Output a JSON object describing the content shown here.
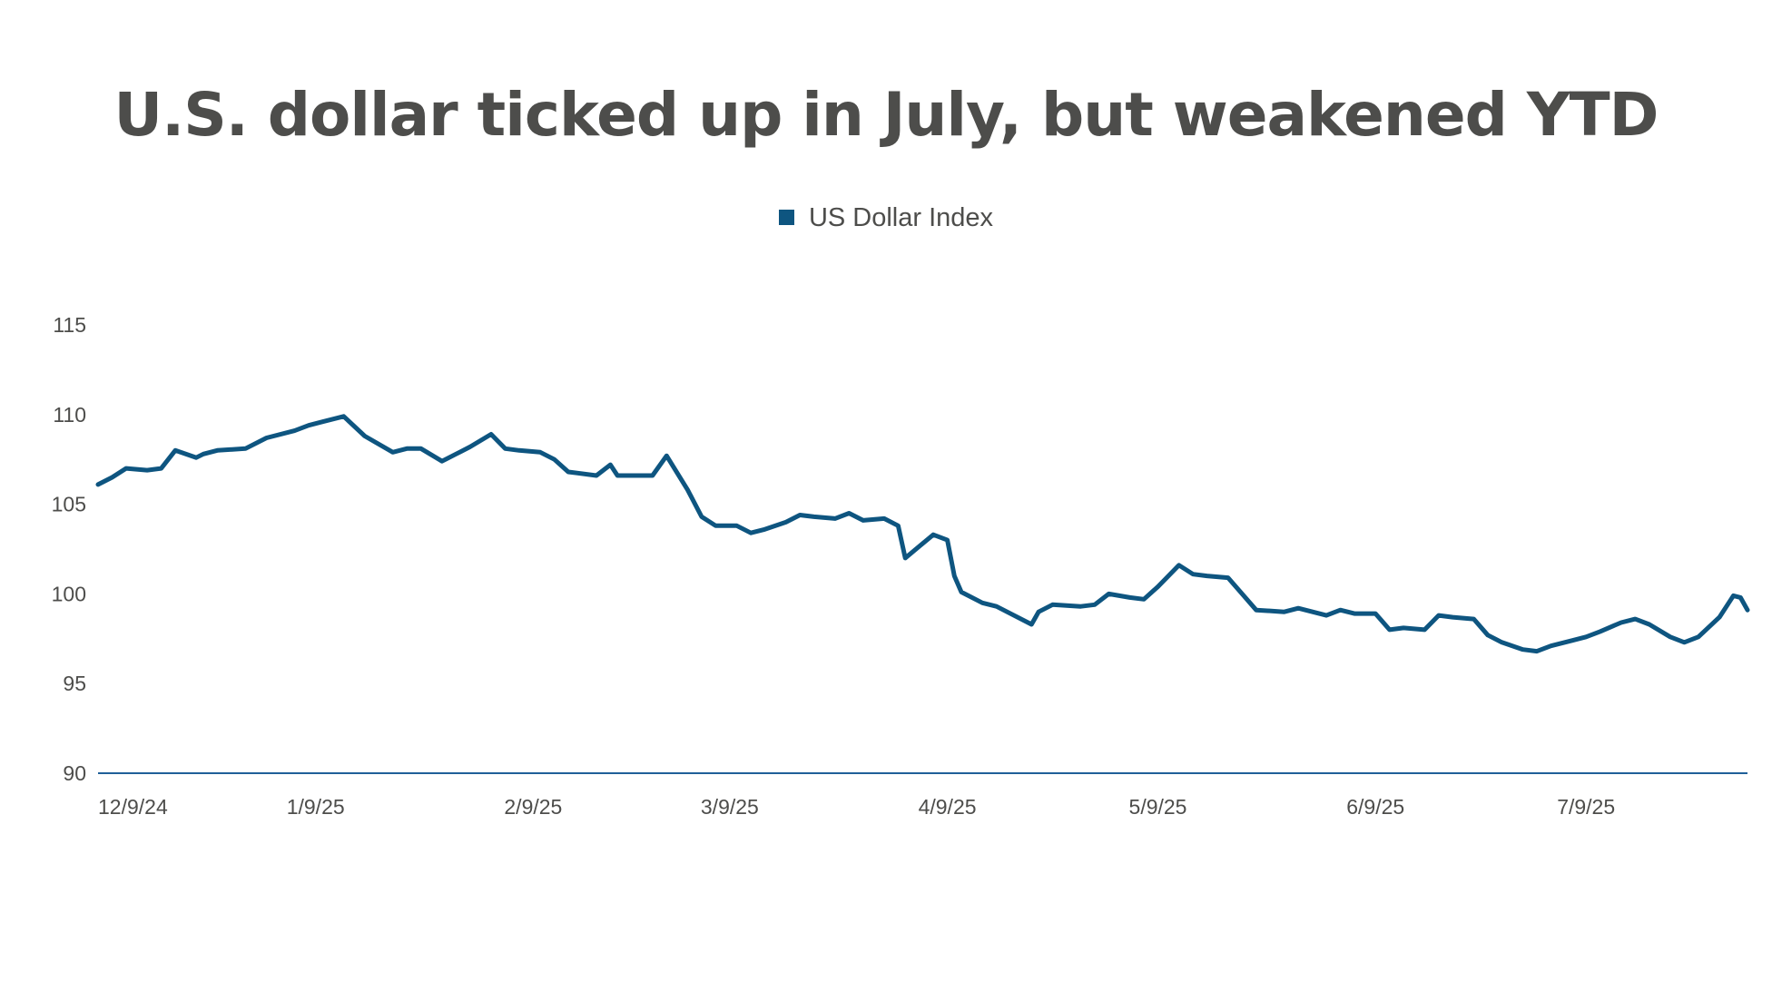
{
  "chart_data": {
    "type": "line",
    "title": "U.S. dollar ticked up in July, but weakened YTD",
    "xlabel": "",
    "ylabel": "",
    "ylim": [
      90,
      115
    ],
    "yticks": [
      90,
      95,
      100,
      105,
      110,
      115
    ],
    "xticks": [
      "12/9/24",
      "1/9/25",
      "2/9/25",
      "3/9/25",
      "4/9/25",
      "5/9/25",
      "6/9/25",
      "7/9/25"
    ],
    "grid": false,
    "legend": "top-center",
    "colors": {
      "line": "#0e5580",
      "axis": "#1f5f99"
    },
    "series": [
      {
        "name": "US Dollar Index",
        "x": [
          "2024-12-09",
          "2024-12-11",
          "2024-12-13",
          "2024-12-16",
          "2024-12-18",
          "2024-12-20",
          "2024-12-23",
          "2024-12-24",
          "2024-12-26",
          "2024-12-30",
          "2025-01-02",
          "2025-01-06",
          "2025-01-08",
          "2025-01-10",
          "2025-01-13",
          "2025-01-16",
          "2025-01-20",
          "2025-01-22",
          "2025-01-24",
          "2025-01-27",
          "2025-01-29",
          "2025-01-31",
          "2025-02-03",
          "2025-02-05",
          "2025-02-07",
          "2025-02-10",
          "2025-02-12",
          "2025-02-14",
          "2025-02-18",
          "2025-02-20",
          "2025-02-21",
          "2025-02-24",
          "2025-02-26",
          "2025-02-28",
          "2025-03-03",
          "2025-03-05",
          "2025-03-07",
          "2025-03-10",
          "2025-03-12",
          "2025-03-14",
          "2025-03-17",
          "2025-03-19",
          "2025-03-21",
          "2025-03-24",
          "2025-03-26",
          "2025-03-28",
          "2025-03-31",
          "2025-04-02",
          "2025-04-03",
          "2025-04-07",
          "2025-04-09",
          "2025-04-10",
          "2025-04-11",
          "2025-04-14",
          "2025-04-16",
          "2025-04-21",
          "2025-04-22",
          "2025-04-24",
          "2025-04-28",
          "2025-04-30",
          "2025-05-02",
          "2025-05-05",
          "2025-05-07",
          "2025-05-09",
          "2025-05-12",
          "2025-05-14",
          "2025-05-16",
          "2025-05-19",
          "2025-05-21",
          "2025-05-23",
          "2025-05-27",
          "2025-05-29",
          "2025-06-02",
          "2025-06-04",
          "2025-06-06",
          "2025-06-09",
          "2025-06-11",
          "2025-06-13",
          "2025-06-16",
          "2025-06-18",
          "2025-06-20",
          "2025-06-23",
          "2025-06-25",
          "2025-06-27",
          "2025-06-30",
          "2025-07-02",
          "2025-07-04",
          "2025-07-07",
          "2025-07-09",
          "2025-07-11",
          "2025-07-14",
          "2025-07-16",
          "2025-07-18",
          "2025-07-21",
          "2025-07-23",
          "2025-07-25",
          "2025-07-28",
          "2025-07-30",
          "2025-07-31",
          "2025-08-01"
        ],
        "values": [
          106.1,
          106.5,
          107.0,
          106.9,
          107.0,
          108.0,
          107.6,
          107.8,
          108.0,
          108.1,
          108.7,
          109.1,
          109.4,
          109.6,
          109.9,
          108.8,
          107.9,
          108.1,
          108.1,
          107.4,
          107.8,
          108.2,
          108.9,
          108.1,
          108.0,
          107.9,
          107.5,
          106.8,
          106.6,
          107.2,
          106.6,
          106.6,
          106.6,
          107.7,
          105.8,
          104.3,
          103.8,
          103.8,
          103.4,
          103.6,
          104.0,
          104.4,
          104.3,
          104.2,
          104.5,
          104.1,
          104.2,
          103.8,
          102.0,
          103.3,
          103.0,
          101.0,
          100.1,
          99.5,
          99.3,
          98.3,
          99.0,
          99.4,
          99.3,
          99.4,
          100.0,
          99.8,
          99.7,
          100.4,
          101.6,
          101.1,
          101.0,
          100.9,
          100.0,
          99.1,
          99.0,
          99.2,
          98.8,
          99.1,
          98.9,
          98.9,
          98.0,
          98.1,
          98.0,
          98.8,
          98.7,
          98.6,
          97.7,
          97.3,
          96.9,
          96.8,
          97.1,
          97.4,
          97.6,
          97.9,
          98.4,
          98.6,
          98.3,
          97.6,
          97.3,
          97.6,
          98.7,
          99.9,
          99.8,
          99.1
        ]
      }
    ]
  }
}
